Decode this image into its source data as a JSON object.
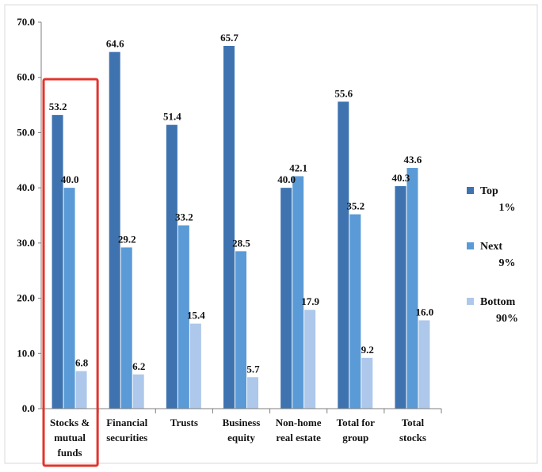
{
  "chart_data": {
    "type": "bar",
    "title": "",
    "xlabel": "",
    "ylabel": "",
    "ylim": [
      0,
      70
    ],
    "yticks": [
      "0.0",
      "10.0",
      "20.0",
      "30.0",
      "40.0",
      "50.0",
      "60.0",
      "70.0"
    ],
    "grid": false,
    "legend_position": "right",
    "categories": [
      [
        "Stocks &",
        "mutual",
        "funds"
      ],
      [
        "Financial",
        "securities"
      ],
      [
        "Trusts"
      ],
      [
        "Business",
        "equity"
      ],
      [
        "Non-home",
        "real estate"
      ],
      [
        "Total for",
        "group"
      ],
      [
        "Total",
        "stocks"
      ]
    ],
    "series": [
      {
        "name": [
          "Top",
          "1%"
        ],
        "color": "#3e73b0",
        "values": [
          53.2,
          64.6,
          51.4,
          65.7,
          40.0,
          55.6,
          40.3
        ],
        "labels": [
          "53.2",
          "64.6",
          "51.4",
          "65.7",
          "40.0",
          "55.6",
          "40.3"
        ]
      },
      {
        "name": [
          "Next",
          "9%"
        ],
        "color": "#5a9ad6",
        "values": [
          40.0,
          29.2,
          33.2,
          28.5,
          42.1,
          35.2,
          43.6
        ],
        "labels": [
          "40.0",
          "29.2",
          "33.2",
          "28.5",
          "42.1",
          "35.2",
          "43.6"
        ]
      },
      {
        "name": [
          "Bottom",
          "90%"
        ],
        "color": "#adc8ea",
        "values": [
          6.8,
          6.2,
          15.4,
          5.7,
          17.9,
          9.2,
          16.0
        ],
        "labels": [
          "6.8",
          "6.2",
          "15.4",
          "5.7",
          "17.9",
          "9.2",
          "16.0"
        ]
      }
    ],
    "highlight": {
      "category_index": 0,
      "color": "#e0352f"
    },
    "colors": {
      "axis": "#7f7f7f",
      "border": "#d9d9d9"
    }
  }
}
